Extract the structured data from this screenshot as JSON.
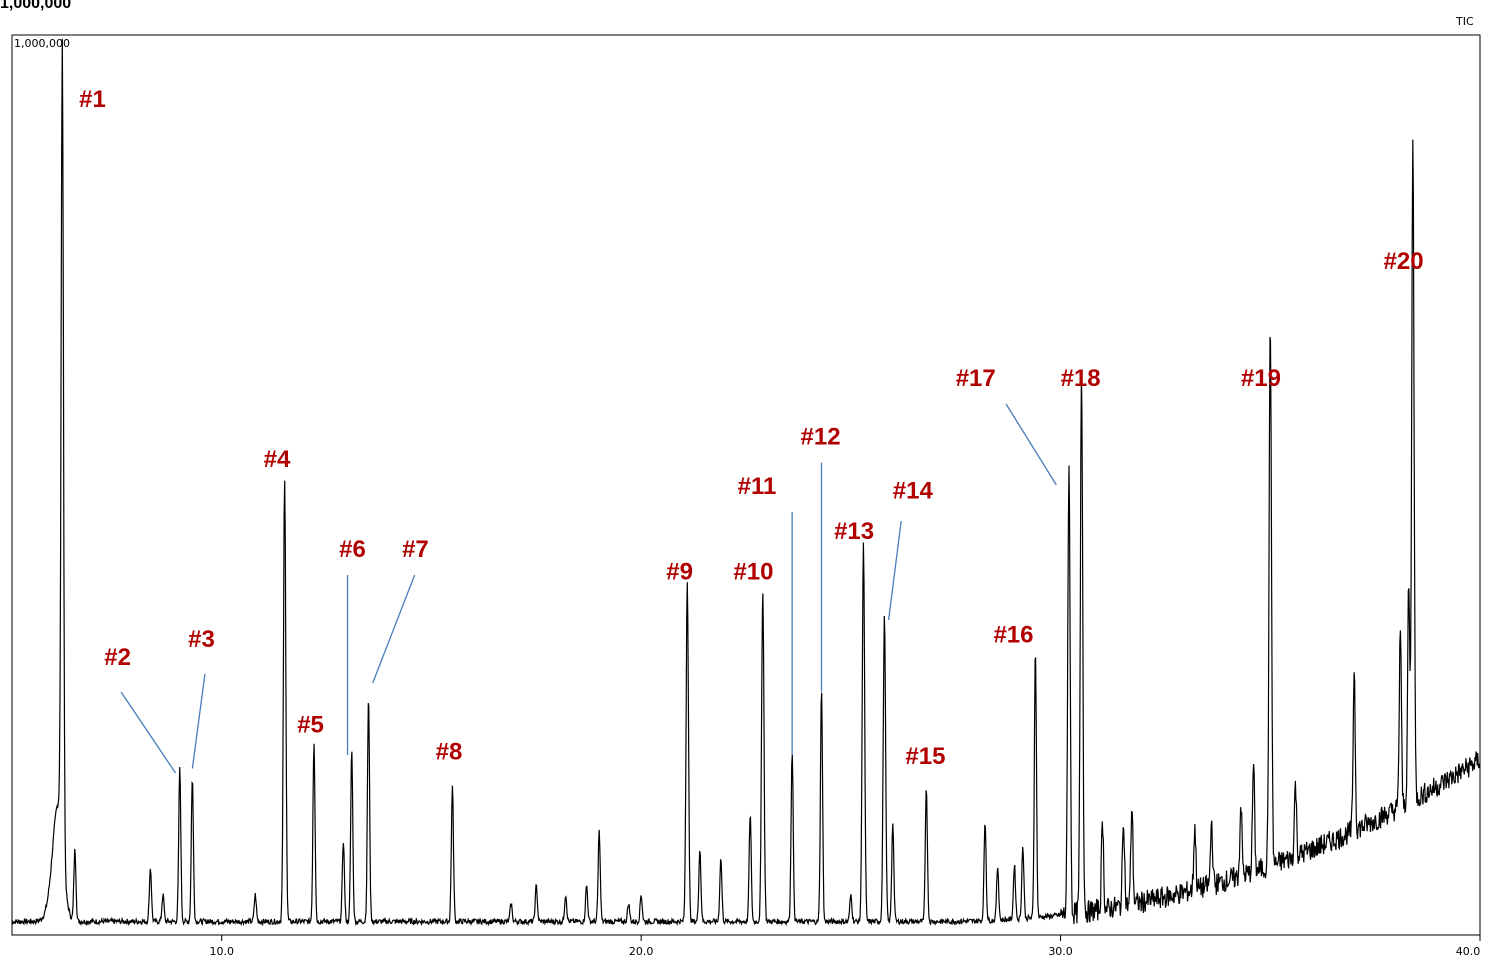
{
  "chart_data": {
    "type": "line",
    "title": "",
    "ylabel_top": "1,000,000",
    "plot_max_label": "1,000,000",
    "trace_label": "TIC",
    "xlim": [
      5.0,
      40.0
    ],
    "ylim": [
      0,
      1000000
    ],
    "x_ticks": [
      "10.0",
      "20.0",
      "30.0",
      "40.0"
    ],
    "x_tick_values": [
      10,
      20,
      30,
      40
    ],
    "colors": {
      "trace": "#000000",
      "label": "#b00000",
      "leader": "#4a7ebb"
    },
    "peaks": [
      {
        "label": "#1",
        "rt": 6.2,
        "height": 880000
      },
      {
        "label": "#2",
        "rt": 9.0,
        "height": 170000
      },
      {
        "label": "#3",
        "rt": 9.3,
        "height": 160000
      },
      {
        "label": "#4",
        "rt": 11.5,
        "height": 490000
      },
      {
        "label": "#5",
        "rt": 12.2,
        "height": 200000
      },
      {
        "label": "#6",
        "rt": 13.1,
        "height": 190000
      },
      {
        "label": "#7",
        "rt": 13.5,
        "height": 250000
      },
      {
        "label": "#8",
        "rt": 15.5,
        "height": 150000
      },
      {
        "label": "#9",
        "rt": 21.1,
        "height": 380000
      },
      {
        "label": "#10",
        "rt": 22.9,
        "height": 370000
      },
      {
        "label": "#11",
        "rt": 23.6,
        "height": 190000
      },
      {
        "label": "#12",
        "rt": 24.3,
        "height": 260000
      },
      {
        "label": "#13",
        "rt": 25.3,
        "height": 420000
      },
      {
        "label": "#14",
        "rt": 25.8,
        "height": 340000
      },
      {
        "label": "#15",
        "rt": 26.8,
        "height": 150000
      },
      {
        "label": "#16",
        "rt": 29.4,
        "height": 300000
      },
      {
        "label": "#17",
        "rt": 30.2,
        "height": 500000
      },
      {
        "label": "#18",
        "rt": 30.5,
        "height": 600000
      },
      {
        "label": "#19",
        "rt": 35.0,
        "height": 600000
      },
      {
        "label": "#20",
        "rt": 38.4,
        "height": 730000
      }
    ],
    "minor_peaks": [
      {
        "rt": 6.5,
        "height": 80000
      },
      {
        "rt": 8.3,
        "height": 60000
      },
      {
        "rt": 8.6,
        "height": 30000
      },
      {
        "rt": 10.8,
        "height": 30000
      },
      {
        "rt": 12.9,
        "height": 90000
      },
      {
        "rt": 16.9,
        "height": 20000
      },
      {
        "rt": 17.5,
        "height": 40000
      },
      {
        "rt": 18.2,
        "height": 30000
      },
      {
        "rt": 18.7,
        "height": 40000
      },
      {
        "rt": 19.0,
        "height": 100000
      },
      {
        "rt": 19.7,
        "height": 20000
      },
      {
        "rt": 20.0,
        "height": 30000
      },
      {
        "rt": 21.4,
        "height": 80000
      },
      {
        "rt": 21.9,
        "height": 70000
      },
      {
        "rt": 22.6,
        "height": 120000
      },
      {
        "rt": 25.0,
        "height": 30000
      },
      {
        "rt": 26.0,
        "height": 110000
      },
      {
        "rt": 28.2,
        "height": 110000
      },
      {
        "rt": 28.5,
        "height": 60000
      },
      {
        "rt": 28.9,
        "height": 60000
      },
      {
        "rt": 29.1,
        "height": 80000
      },
      {
        "rt": 31.0,
        "height": 100000
      },
      {
        "rt": 31.5,
        "height": 100000
      },
      {
        "rt": 31.7,
        "height": 110000
      },
      {
        "rt": 33.2,
        "height": 70000
      },
      {
        "rt": 33.6,
        "height": 70000
      },
      {
        "rt": 34.3,
        "height": 80000
      },
      {
        "rt": 34.6,
        "height": 120000
      },
      {
        "rt": 35.6,
        "height": 80000
      },
      {
        "rt": 37.0,
        "height": 180000
      },
      {
        "rt": 38.1,
        "height": 200000
      },
      {
        "rt": 38.3,
        "height": 240000
      }
    ],
    "annotations": [
      {
        "label": "#1",
        "x": 6.6,
        "y": 920000,
        "leader": null
      },
      {
        "label": "#2",
        "x": 7.2,
        "y": 300000,
        "leader": [
          [
            7.6,
            270000
          ],
          [
            8.9,
            180000
          ]
        ]
      },
      {
        "label": "#3",
        "x": 9.2,
        "y": 320000,
        "leader": [
          [
            9.6,
            290000
          ],
          [
            9.3,
            185000
          ]
        ]
      },
      {
        "label": "#4",
        "x": 11.0,
        "y": 520000,
        "leader": null
      },
      {
        "label": "#5",
        "x": 11.8,
        "y": 225000,
        "leader": null
      },
      {
        "label": "#6",
        "x": 12.8,
        "y": 420000,
        "leader": [
          [
            13.0,
            400000
          ],
          [
            13.0,
            200000
          ]
        ]
      },
      {
        "label": "#7",
        "x": 14.3,
        "y": 420000,
        "leader": [
          [
            14.6,
            400000
          ],
          [
            13.6,
            280000
          ]
        ]
      },
      {
        "label": "#8",
        "x": 15.1,
        "y": 195000,
        "leader": null
      },
      {
        "label": "#9",
        "x": 20.6,
        "y": 395000,
        "leader": null
      },
      {
        "label": "#10",
        "x": 22.2,
        "y": 395000,
        "leader": null
      },
      {
        "label": "#11",
        "x": 22.3,
        "y": 490000,
        "leader": [
          [
            23.6,
            470000
          ],
          [
            23.6,
            200000
          ]
        ]
      },
      {
        "label": "#12",
        "x": 23.8,
        "y": 545000,
        "leader": [
          [
            24.3,
            525000
          ],
          [
            24.3,
            270000
          ]
        ]
      },
      {
        "label": "#13",
        "x": 24.6,
        "y": 440000,
        "leader": null
      },
      {
        "label": "#14",
        "x": 26.0,
        "y": 485000,
        "leader": [
          [
            26.2,
            460000
          ],
          [
            25.9,
            350000
          ]
        ]
      },
      {
        "label": "#15",
        "x": 26.3,
        "y": 190000,
        "leader": null
      },
      {
        "label": "#16",
        "x": 28.4,
        "y": 325000,
        "leader": null
      },
      {
        "label": "#17",
        "x": 27.5,
        "y": 610000,
        "leader": [
          [
            28.7,
            590000
          ],
          [
            29.9,
            500000
          ]
        ]
      },
      {
        "label": "#18",
        "x": 30.0,
        "y": 610000,
        "leader": null
      },
      {
        "label": "#19",
        "x": 34.3,
        "y": 610000,
        "leader": null
      },
      {
        "label": "#20",
        "x": 37.7,
        "y": 740000,
        "leader": null
      }
    ]
  }
}
